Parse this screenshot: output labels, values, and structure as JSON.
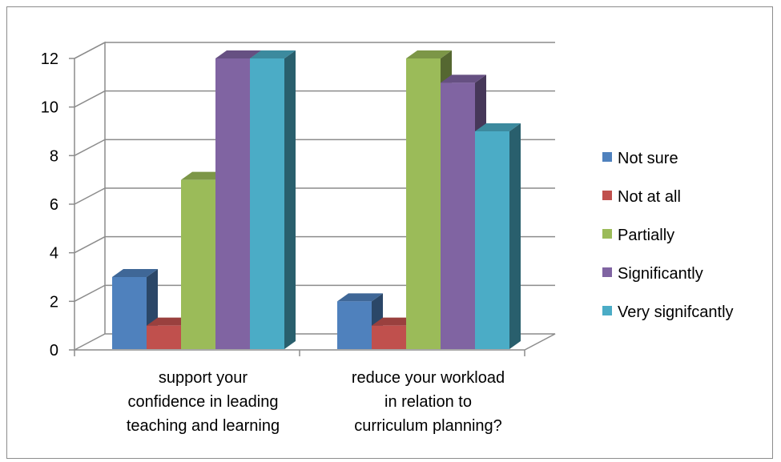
{
  "chart_data": {
    "type": "bar",
    "variant": "3d-clustered-column",
    "categories": [
      [
        "support your",
        "confidence in leading",
        "teaching and learning"
      ],
      [
        "reduce your workload",
        "in relation to",
        "curriculum planning?"
      ]
    ],
    "series": [
      {
        "name": "Not sure",
        "values": [
          3,
          2
        ],
        "color": "#4f81bd"
      },
      {
        "name": "Not at all",
        "values": [
          1,
          1
        ],
        "color": "#c0504d"
      },
      {
        "name": "Partially",
        "values": [
          7,
          12
        ],
        "color": "#9bbb59"
      },
      {
        "name": "Significantly",
        "values": [
          12,
          11
        ],
        "color": "#8064a2"
      },
      {
        "name": "Very signifcantly",
        "values": [
          12,
          9
        ],
        "color": "#4bacc6"
      }
    ],
    "y_ticks": [
      "0",
      "2",
      "4",
      "6",
      "8",
      "10",
      "12"
    ],
    "ylim": [
      0,
      12
    ],
    "grid": true,
    "legend_position": "right"
  }
}
